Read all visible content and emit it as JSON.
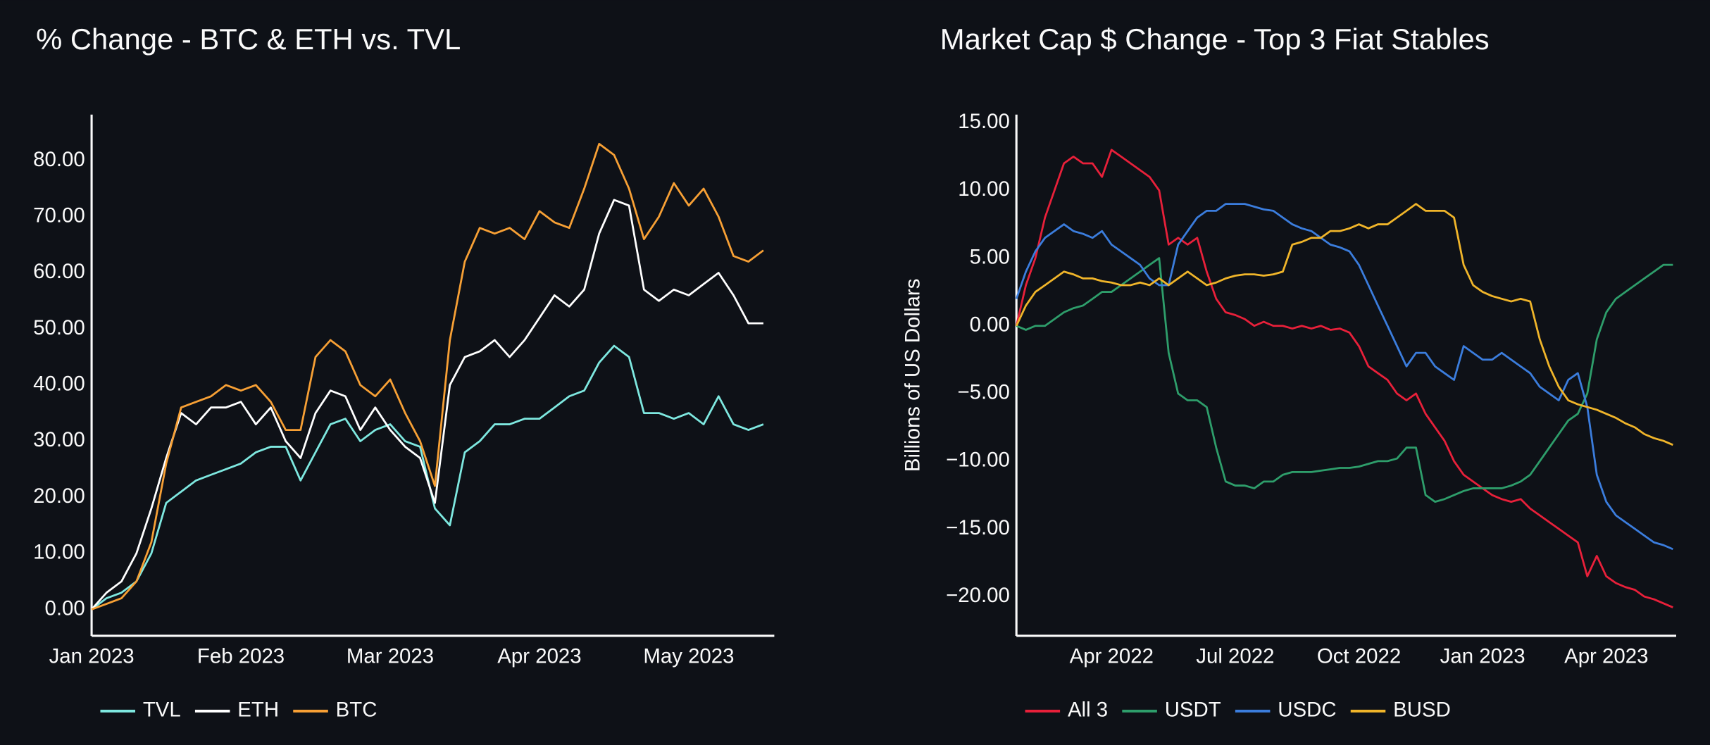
{
  "chart_data": [
    {
      "type": "line",
      "title": "% Change - BTC & ETH vs. TVL",
      "x": [
        "Jan 2023",
        null,
        null,
        null,
        null,
        null,
        null,
        null,
        null,
        null,
        "Feb 2023",
        null,
        null,
        null,
        null,
        null,
        null,
        null,
        null,
        null,
        "Mar 2023",
        null,
        null,
        null,
        null,
        null,
        null,
        null,
        null,
        null,
        "Apr 2023",
        null,
        null,
        null,
        null,
        null,
        null,
        null,
        null,
        null,
        "May 2023",
        null,
        null,
        null,
        null,
        null
      ],
      "series": [
        {
          "name": "TVL",
          "color": "#7ee8e0",
          "values": [
            0,
            2,
            3,
            5,
            10,
            19,
            21,
            23,
            24,
            25,
            26,
            28,
            29,
            29,
            23,
            28,
            33,
            34,
            30,
            32,
            33,
            30,
            29,
            18,
            15,
            28,
            30,
            33,
            33,
            34,
            34,
            36,
            38,
            39,
            44,
            47,
            45,
            35,
            35,
            34,
            35,
            33,
            38,
            33,
            32,
            33
          ]
        },
        {
          "name": "ETH",
          "color": "#ffffff",
          "values": [
            0,
            3,
            5,
            10,
            18,
            27,
            35,
            33,
            36,
            36,
            37,
            33,
            36,
            30,
            27,
            35,
            39,
            38,
            32,
            36,
            32,
            29,
            27,
            19,
            40,
            45,
            46,
            48,
            45,
            48,
            52,
            56,
            54,
            57,
            67,
            73,
            72,
            57,
            55,
            57,
            56,
            58,
            60,
            56,
            51,
            51
          ]
        },
        {
          "name": "BTC",
          "color": "#f7a035",
          "values": [
            0,
            1,
            2,
            5,
            12,
            26,
            36,
            37,
            38,
            40,
            39,
            40,
            37,
            32,
            32,
            45,
            48,
            46,
            40,
            38,
            41,
            35,
            30,
            22,
            48,
            62,
            68,
            67,
            68,
            66,
            71,
            69,
            68,
            75,
            83,
            81,
            75,
            66,
            70,
            76,
            72,
            75,
            70,
            63,
            62,
            64
          ]
        }
      ],
      "ylim": [
        -4.7,
        88.2
      ],
      "yticks": [
        {
          "value": 0,
          "label": "0.00"
        },
        {
          "value": 10,
          "label": "10.00"
        },
        {
          "value": 20,
          "label": "20.00"
        },
        {
          "value": 30,
          "label": "30.00"
        },
        {
          "value": 40,
          "label": "40.00"
        },
        {
          "value": 50,
          "label": "50.00"
        },
        {
          "value": 60,
          "label": "60.00"
        },
        {
          "value": 70,
          "label": "70.00"
        },
        {
          "value": 80,
          "label": "80.00"
        }
      ],
      "legend": "bottom"
    },
    {
      "type": "line",
      "title": "Market Cap $ Change - Top 3 Fiat Stables",
      "y_label": "Billions of US Dollars",
      "x": [
        null,
        null,
        null,
        null,
        null,
        null,
        null,
        null,
        null,
        null,
        "Apr 2022",
        null,
        null,
        null,
        null,
        null,
        null,
        null,
        null,
        null,
        null,
        null,
        null,
        "Jul 2022",
        null,
        null,
        null,
        null,
        null,
        null,
        null,
        null,
        null,
        null,
        null,
        null,
        "Oct 2022",
        null,
        null,
        null,
        null,
        null,
        null,
        null,
        null,
        null,
        null,
        null,
        null,
        "Jan 2023",
        null,
        null,
        null,
        null,
        null,
        null,
        null,
        null,
        null,
        null,
        null,
        null,
        "Apr 2023",
        null,
        null,
        null,
        null,
        null,
        null,
        null
      ],
      "series": [
        {
          "name": "All 3",
          "color": "#e8203a",
          "values": [
            0,
            3,
            5,
            8,
            10,
            12,
            12.5,
            12,
            12,
            11,
            13,
            12.5,
            12,
            11.5,
            11,
            10,
            6,
            6.5,
            6,
            6.5,
            4,
            2,
            1,
            0.8,
            0.5,
            0,
            0.3,
            0,
            0,
            -0.2,
            0,
            -0.2,
            0,
            -0.3,
            -0.2,
            -0.5,
            -1.5,
            -3,
            -3.5,
            -4,
            -5,
            -5.5,
            -5,
            -6.5,
            -7.5,
            -8.5,
            -10,
            -11,
            -11.5,
            -12,
            -12.5,
            -12.8,
            -13,
            -12.8,
            -13.5,
            -14,
            -14.5,
            -15,
            -15.5,
            -16,
            -18.5,
            -17,
            -18.5,
            -19,
            -19.3,
            -19.5,
            -20,
            -20.2,
            -20.5,
            -20.8
          ]
        },
        {
          "name": "USDT",
          "color": "#2e9e6b",
          "values": [
            0,
            -0.3,
            0,
            0,
            0.5,
            1,
            1.3,
            1.5,
            2,
            2.5,
            2.5,
            3,
            3.5,
            4,
            4.5,
            5,
            -2,
            -5,
            -5.5,
            -5.5,
            -6,
            -9,
            -11.5,
            -11.8,
            -11.8,
            -12,
            -11.5,
            -11.5,
            -11,
            -10.8,
            -10.8,
            -10.8,
            -10.7,
            -10.6,
            -10.5,
            -10.5,
            -10.4,
            -10.2,
            -10,
            -10,
            -9.8,
            -9,
            -9,
            -12.5,
            -13,
            -12.8,
            -12.5,
            -12.2,
            -12,
            -12,
            -12,
            -12,
            -11.8,
            -11.5,
            -11,
            -10,
            -9,
            -8,
            -7,
            -6.5,
            -5,
            -1,
            1,
            2,
            2.5,
            3,
            3.5,
            4,
            4.5,
            4.5
          ]
        },
        {
          "name": "USDC",
          "color": "#3b7ddd",
          "values": [
            2,
            4,
            5.5,
            6.5,
            7,
            7.5,
            7,
            6.8,
            6.5,
            7,
            6,
            5.5,
            5,
            4.5,
            3.5,
            3,
            3,
            6,
            7,
            8,
            8.5,
            8.5,
            9,
            9,
            9,
            8.8,
            8.6,
            8.5,
            8,
            7.5,
            7.2,
            7,
            6.5,
            6,
            5.8,
            5.5,
            4.5,
            3,
            1.5,
            0,
            -1.5,
            -3,
            -2,
            -2,
            -3,
            -3.5,
            -4,
            -1.5,
            -2,
            -2.5,
            -2.5,
            -2,
            -2.5,
            -3,
            -3.5,
            -4.5,
            -5,
            -5.5,
            -4,
            -3.5,
            -6,
            -11,
            -13,
            -14,
            -14.5,
            -15,
            -15.5,
            -16,
            -16.2,
            -16.5
          ]
        },
        {
          "name": "BUSD",
          "color": "#f0b52a",
          "values": [
            0,
            1.5,
            2.5,
            3,
            3.5,
            4,
            3.8,
            3.5,
            3.5,
            3.3,
            3.2,
            3,
            3,
            3.2,
            3,
            3.5,
            3,
            3.5,
            4,
            3.5,
            3,
            3.2,
            3.5,
            3.7,
            3.8,
            3.8,
            3.7,
            3.8,
            4,
            6,
            6.2,
            6.5,
            6.5,
            7,
            7,
            7.2,
            7.5,
            7.2,
            7.5,
            7.5,
            8,
            8.5,
            9,
            8.5,
            8.5,
            8.5,
            8,
            4.5,
            3,
            2.5,
            2.2,
            2,
            1.8,
            2,
            1.8,
            -1,
            -3,
            -4.5,
            -5.5,
            -5.8,
            -6,
            -6.2,
            -6.5,
            -6.8,
            -7.2,
            -7.5,
            -8,
            -8.3,
            -8.5,
            -8.8
          ]
        }
      ],
      "ylim": [
        -22.9,
        15.6
      ],
      "yticks": [
        {
          "value": -20,
          "label": "−20.00"
        },
        {
          "value": -15,
          "label": "−15.00"
        },
        {
          "value": -10,
          "label": "−10.00"
        },
        {
          "value": -5,
          "label": "−5.00"
        },
        {
          "value": 0,
          "label": "0.00"
        },
        {
          "value": 5,
          "label": "5.00"
        },
        {
          "value": 10,
          "label": "10.00"
        },
        {
          "value": 15,
          "label": "15.00"
        }
      ],
      "legend": "bottom"
    }
  ]
}
